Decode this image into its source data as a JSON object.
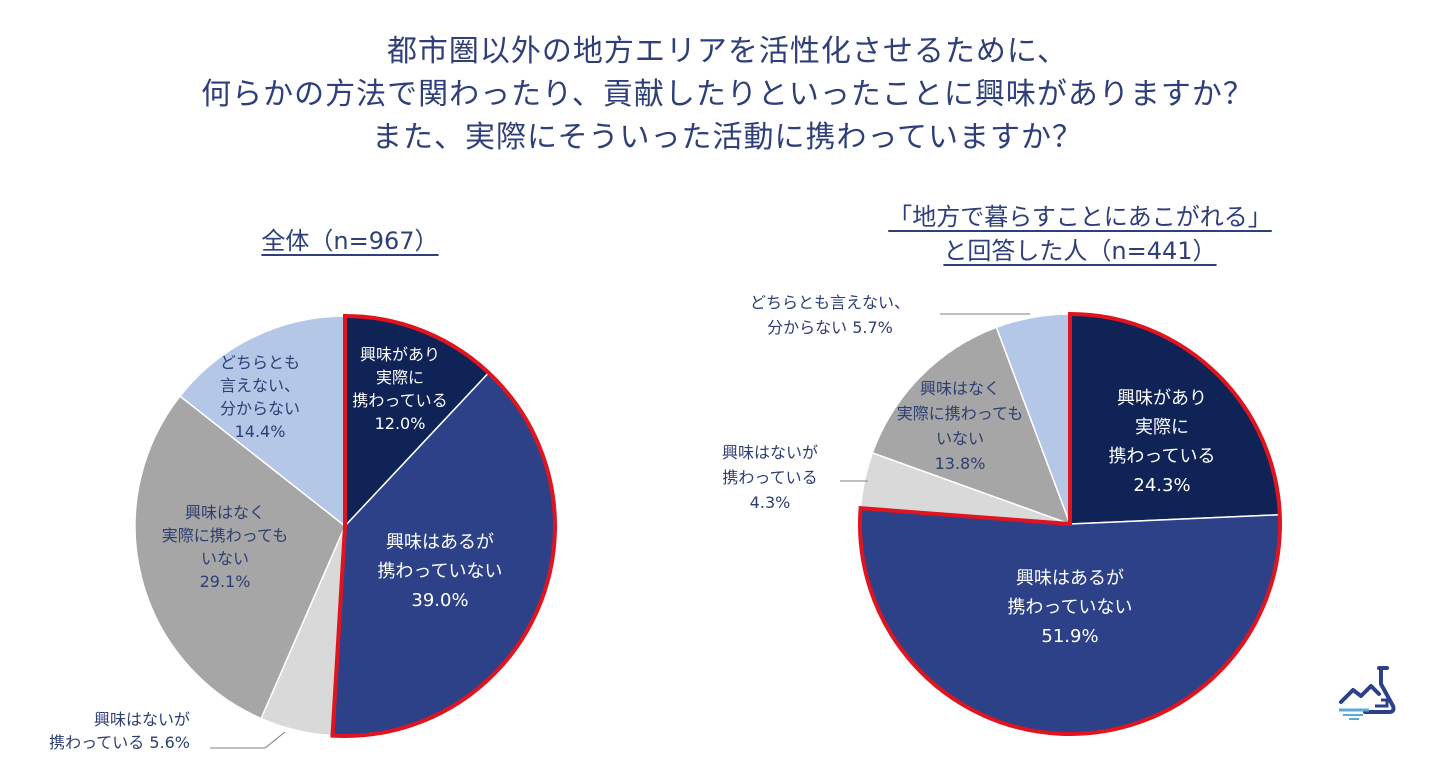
{
  "title": {
    "line1": "都市圏以外の地方エリアを活性化させるために、",
    "line2": "何らかの方法で関わったり、貢献したりといったことに興味がありますか？",
    "line3": "また、実際にそういった活動に携わっていますか？"
  },
  "colors": {
    "dark_navy": "#0f2357",
    "navy": "#2d4189",
    "light_gray": "#d9d9d9",
    "gray": "#a6a6a6",
    "light_blue": "#b4c7e7",
    "highlight_red": "#e0141e",
    "title_blue": "#2e3f7a"
  },
  "chart_data": [
    {
      "type": "pie",
      "title": "全体（n=967）",
      "start": "12 o'clock, clockwise",
      "slices": [
        {
          "label": [
            "興味があり",
            "実際に",
            "携わっている"
          ],
          "value": 12.0,
          "value_label": "12.0%",
          "color": "#0f2357",
          "text_color": "#ffffff"
        },
        {
          "label": [
            "興味はあるが",
            "携わっていない"
          ],
          "value": 39.0,
          "value_label": "39.0%",
          "color": "#2d4189",
          "text_color": "#ffffff"
        },
        {
          "label": [
            "興味はないが",
            "携わっている"
          ],
          "value": 5.6,
          "value_label": "5.6%",
          "color": "#d9d9d9",
          "text_color": "#2d3e73"
        },
        {
          "label": [
            "興味はなく",
            "実際に携わっても",
            "いない"
          ],
          "value": 29.1,
          "value_label": "29.1%",
          "color": "#a6a6a6",
          "text_color": "#2d3e73"
        },
        {
          "label": [
            "どちらとも",
            "言えない、",
            "分からない"
          ],
          "value": 14.4,
          "value_label": "14.4%",
          "color": "#b4c7e7",
          "text_color": "#2d3e73"
        }
      ],
      "highlighted_slices": [
        0,
        1
      ]
    },
    {
      "type": "pie",
      "title_lines": [
        "「地方で暮らすことにあこがれる」",
        "と回答した人（n=441）"
      ],
      "start": "12 o'clock, clockwise",
      "slices": [
        {
          "label": [
            "興味があり",
            "実際に",
            "携わっている"
          ],
          "value": 24.3,
          "value_label": "24.3%",
          "color": "#0f2357",
          "text_color": "#ffffff"
        },
        {
          "label": [
            "興味はあるが",
            "携わっていない"
          ],
          "value": 51.9,
          "value_label": "51.9%",
          "color": "#2d4189",
          "text_color": "#ffffff"
        },
        {
          "label": [
            "興味はないが",
            "携わっている"
          ],
          "value": 4.3,
          "value_label": "4.3%",
          "color": "#d9d9d9",
          "text_color": "#2d3e73"
        },
        {
          "label": [
            "興味はなく",
            "実際に携わっても",
            "いない"
          ],
          "value": 13.8,
          "value_label": "13.8%",
          "color": "#a6a6a6",
          "text_color": "#2d3e73"
        },
        {
          "label": [
            "どちらとも言えない、",
            "分からない"
          ],
          "value": 5.7,
          "value_label": "5.7%",
          "color": "#b4c7e7",
          "text_color": "#2d3e73"
        }
      ],
      "highlighted_slices": [
        0,
        1
      ]
    }
  ]
}
